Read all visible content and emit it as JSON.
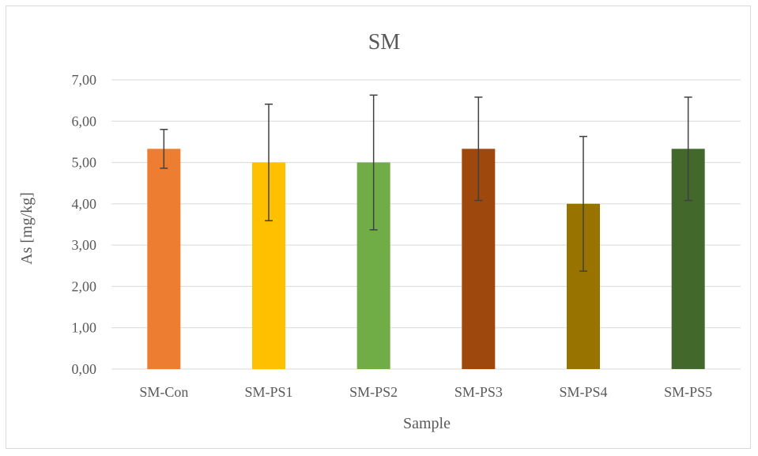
{
  "chart_data": {
    "type": "bar",
    "title": "SM",
    "xlabel": "Sample",
    "ylabel": "As [mg/kg]",
    "ylim": [
      0,
      7
    ],
    "yticks": [
      "0,00",
      "1,00",
      "2,00",
      "3,00",
      "4,00",
      "5,00",
      "6,00",
      "7,00"
    ],
    "grid": true,
    "categories": [
      "SM-Con",
      "SM-PS1",
      "SM-PS2",
      "SM-PS3",
      "SM-PS4",
      "SM-PS5"
    ],
    "values": [
      5.33,
      5.0,
      5.0,
      5.33,
      4.0,
      5.33
    ],
    "error_low": [
      4.86,
      3.59,
      3.37,
      4.08,
      2.37,
      4.08
    ],
    "error_high": [
      5.8,
      6.41,
      6.63,
      6.58,
      5.63,
      6.58
    ],
    "colors": [
      "#ED7D31",
      "#FFC000",
      "#70AD47",
      "#9E480E",
      "#997300",
      "#43682B"
    ],
    "gridline_color": "#d9d9d9",
    "errorbar_color": "#404040"
  }
}
